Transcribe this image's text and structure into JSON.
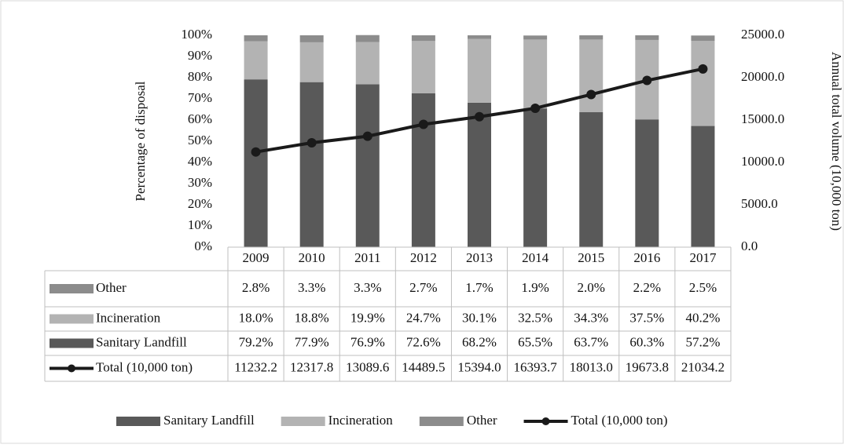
{
  "chart_data": {
    "type": "bar",
    "categories": [
      "2009",
      "2010",
      "2011",
      "2012",
      "2013",
      "2014",
      "2015",
      "2016",
      "2017"
    ],
    "series": [
      {
        "name": "Sanitary Landfill",
        "color": "#595959",
        "values": [
          79.2,
          77.9,
          76.9,
          72.6,
          68.2,
          65.5,
          63.7,
          60.3,
          57.2
        ],
        "value_labels": [
          "79.2%",
          "77.9%",
          "76.9%",
          "72.6%",
          "68.2%",
          "65.5%",
          "63.7%",
          "60.3%",
          "57.2%"
        ]
      },
      {
        "name": "Incineration",
        "color": "#b3b3b3",
        "values": [
          18.0,
          18.8,
          19.9,
          24.7,
          30.1,
          32.5,
          34.3,
          37.5,
          40.2
        ],
        "value_labels": [
          "18.0%",
          "18.8%",
          "19.9%",
          "24.7%",
          "30.1%",
          "32.5%",
          "34.3%",
          "37.5%",
          "40.2%"
        ]
      },
      {
        "name": "Other",
        "color": "#8c8c8c",
        "values": [
          2.8,
          3.3,
          3.3,
          2.7,
          1.7,
          1.9,
          2.0,
          2.2,
          2.5
        ],
        "value_labels": [
          "2.8%",
          "3.3%",
          "3.3%",
          "2.7%",
          "1.7%",
          "1.9%",
          "2.0%",
          "2.2%",
          "2.5%"
        ]
      },
      {
        "name": "Total (10,000 ton)",
        "color": "#1a1a1a",
        "type": "line",
        "axis": "y2",
        "values": [
          11232.2,
          12317.8,
          13089.6,
          14489.5,
          15394.0,
          16393.7,
          18013.0,
          19673.8,
          21034.2
        ],
        "value_labels": [
          "11232.2",
          "12317.8",
          "13089.6",
          "14489.5",
          "15394.0",
          "16393.7",
          "18013.0",
          "19673.8",
          "21034.2"
        ]
      }
    ],
    "y_label": "Percentage of disposal",
    "y2_label": "Annual total volume (10,000 ton)",
    "ylim": [
      0,
      100
    ],
    "yticks": [
      {
        "value": 0,
        "label": "0%"
      },
      {
        "value": 10,
        "label": "10%"
      },
      {
        "value": 20,
        "label": "20%"
      },
      {
        "value": 30,
        "label": "30%"
      },
      {
        "value": 40,
        "label": "40%"
      },
      {
        "value": 50,
        "label": "50%"
      },
      {
        "value": 60,
        "label": "60%"
      },
      {
        "value": 70,
        "label": "70%"
      },
      {
        "value": 80,
        "label": "80%"
      },
      {
        "value": 90,
        "label": "90%"
      },
      {
        "value": 100,
        "label": "100%"
      }
    ],
    "y2lim": [
      0,
      25000
    ],
    "y2ticks": [
      {
        "value": 0,
        "label": "0.0"
      },
      {
        "value": 5000,
        "label": "5000.0"
      },
      {
        "value": 10000,
        "label": "10000.0"
      },
      {
        "value": 15000,
        "label": "15000.0"
      },
      {
        "value": 20000,
        "label": "20000.0"
      },
      {
        "value": 25000,
        "label": "25000.0"
      }
    ],
    "stacked": true,
    "legend": "bottom",
    "data_table": true
  }
}
